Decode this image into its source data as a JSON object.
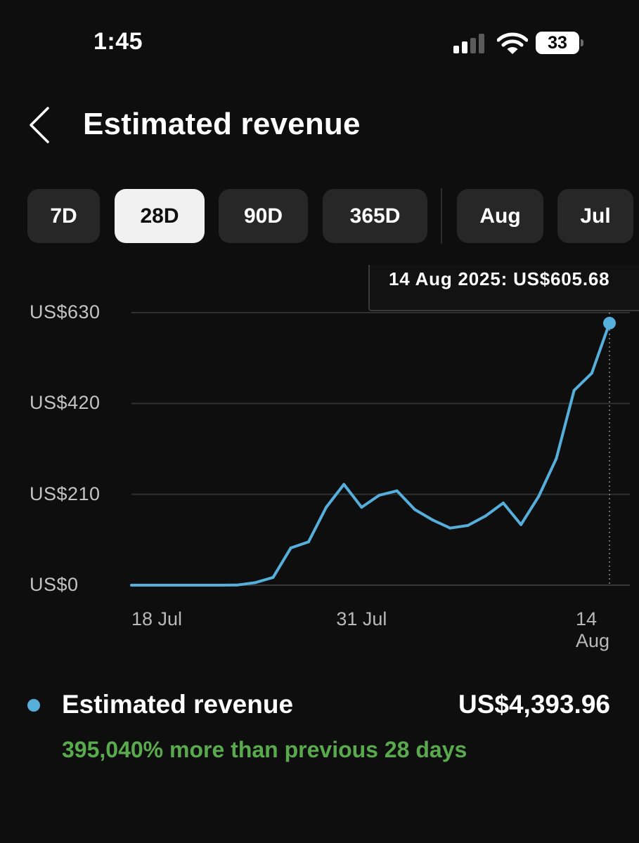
{
  "status_bar": {
    "time": "1:45",
    "battery": "33",
    "signal_bars_active": 2,
    "signal_bars_total": 4,
    "icons": [
      "signal-icon",
      "wifi-icon",
      "battery-icon"
    ]
  },
  "header": {
    "back_icon": "chevron-left-icon",
    "title": "Estimated revenue"
  },
  "periods": [
    {
      "label": "7D",
      "active": false
    },
    {
      "label": "28D",
      "active": true
    },
    {
      "label": "90D",
      "active": false
    },
    {
      "label": "365D",
      "active": false
    },
    {
      "label": "Aug",
      "active": false
    },
    {
      "label": "Jul",
      "active": false
    }
  ],
  "tooltip": {
    "text": "14 Aug 2025: US$605.68"
  },
  "chart_data": {
    "type": "line",
    "title": "",
    "x": [
      "2025-07-18",
      "2025-07-19",
      "2025-07-20",
      "2025-07-21",
      "2025-07-22",
      "2025-07-23",
      "2025-07-24",
      "2025-07-25",
      "2025-07-26",
      "2025-07-27",
      "2025-07-28",
      "2025-07-29",
      "2025-07-30",
      "2025-07-31",
      "2025-08-01",
      "2025-08-02",
      "2025-08-03",
      "2025-08-04",
      "2025-08-05",
      "2025-08-06",
      "2025-08-07",
      "2025-08-08",
      "2025-08-09",
      "2025-08-10",
      "2025-08-11",
      "2025-08-12",
      "2025-08-13",
      "2025-08-14"
    ],
    "series": [
      {
        "color": "#56aedb",
        "values": [
          0,
          0,
          0,
          0,
          0,
          0,
          0.5,
          6,
          18,
          86,
          100,
          180,
          233,
          180,
          208,
          218,
          175,
          151,
          132,
          138,
          160,
          190,
          140,
          205,
          293,
          450,
          490,
          605.68
        ]
      }
    ],
    "xlabel": "",
    "ylabel": "",
    "ylim": [
      0,
      630
    ],
    "y_ticks": [
      "US$0",
      "US$210",
      "US$420",
      "US$630"
    ],
    "y_tick_values": [
      0,
      210,
      420,
      630
    ],
    "x_ticks": [
      "18 Jul",
      "31 Jul",
      "14 Aug"
    ],
    "x_tick_values": [
      "2025-07-18",
      "2025-07-31",
      "2025-08-14"
    ],
    "grid": true,
    "highlight_point": "2025-08-14"
  },
  "summary": {
    "label": "Estimated revenue",
    "value": "US$4,393.96",
    "change": "395,040% more than previous 28 days",
    "dot_color": "#56aedb",
    "change_color": "#59a94d"
  }
}
